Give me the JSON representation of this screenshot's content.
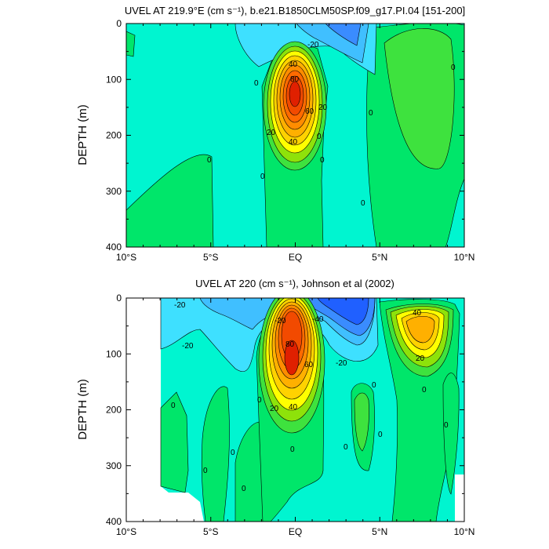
{
  "chart_data": [
    {
      "type": "heatmap",
      "subtype": "filled-contour",
      "title": "UVEL AT 219.9°E (cm s⁻¹), b.e21.B1850CLM50SP.f09_g17.PI.04 [151-200]",
      "xlabel": "",
      "ylabel": "DEPTH (m)",
      "x_ticks": [
        "10°S",
        "5°S",
        "EQ",
        "5°N",
        "10°N"
      ],
      "x_tick_values": [
        -10,
        -5,
        0,
        5,
        10
      ],
      "y_ticks": [
        "0",
        "100",
        "200",
        "300",
        "400"
      ],
      "y_tick_values": [
        0,
        100,
        200,
        300,
        400
      ],
      "xlim": [
        -10,
        10
      ],
      "ylim": [
        400,
        0
      ],
      "y_inverted": true,
      "contour_labels": [
        "-20",
        "40",
        "80",
        "60",
        "20",
        "20",
        "40",
        "0",
        "0",
        "0",
        "0",
        "0",
        "0",
        "0",
        "0"
      ],
      "jet_core": {
        "lat": -0.1,
        "depth": 120,
        "max_value_approx": 100
      }
    },
    {
      "type": "heatmap",
      "subtype": "filled-contour",
      "title": "UVEL AT 220 (cm s⁻¹), Johnson et al (2002)",
      "xlabel": "",
      "ylabel": "DEPTH (m)",
      "x_ticks": [
        "10°S",
        "5°S",
        "EQ",
        "5°N",
        "10°N"
      ],
      "x_tick_values": [
        -10,
        -5,
        0,
        5,
        10
      ],
      "y_ticks": [
        "0",
        "100",
        "200",
        "300",
        "400"
      ],
      "y_tick_values": [
        0,
        100,
        200,
        300,
        400
      ],
      "xlim": [
        -10,
        10
      ],
      "ylim": [
        400,
        0
      ],
      "y_inverted": true,
      "contour_labels": [
        "-20",
        "-20",
        "-40",
        "80",
        "-20",
        "-20",
        "40",
        "20",
        "60",
        "20",
        "40",
        "0",
        "0",
        "0",
        "0",
        "0",
        "0",
        "0",
        "0",
        "0",
        "0",
        "0"
      ],
      "jet_core": {
        "lat": -0.1,
        "depth": 110,
        "max_value_approx": 100
      }
    }
  ],
  "colors": {
    "neg40": "#2060ff",
    "neg30": "#3a8cff",
    "neg20": "#40bfff",
    "neg10": "#3ee0ff",
    "zero": "#00f5d0",
    "pos0": "#00e66a",
    "pos10": "#3ee23e",
    "pos20": "#8ee20a",
    "pos30": "#ffff00",
    "pos40": "#ffd200",
    "pos50": "#ffb000",
    "pos60": "#ff8c00",
    "pos70": "#ff6a00",
    "pos80": "#f24a00",
    "pos90": "#e02000"
  }
}
